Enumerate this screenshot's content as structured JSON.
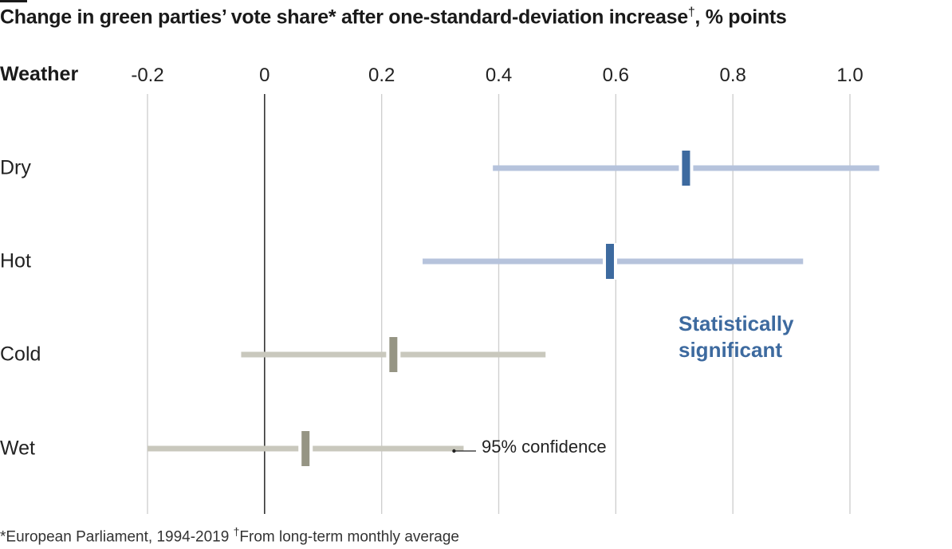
{
  "title": "Change in green parties’ vote share* after one-standard-deviation increase",
  "title_mark": "†",
  "title_suffix": ", % points",
  "chart_data": {
    "type": "interval",
    "ylabel": "Weather",
    "xlim": [
      -0.2,
      1.0
    ],
    "xticks": [
      -0.2,
      0,
      0.2,
      0.4,
      0.6,
      0.8,
      1.0
    ],
    "xtick_labels": [
      "-0.2",
      "0",
      "0.2",
      "0.4",
      "0.6",
      "0.8",
      "1.0"
    ],
    "grid": true,
    "categories": [
      "Dry",
      "Hot",
      "Cold",
      "Wet"
    ],
    "series": [
      {
        "category": "Dry",
        "estimate": 0.72,
        "ci_low": 0.39,
        "ci_high": 1.05,
        "significant": true
      },
      {
        "category": "Hot",
        "estimate": 0.59,
        "ci_low": 0.27,
        "ci_high": 0.92,
        "significant": true
      },
      {
        "category": "Cold",
        "estimate": 0.22,
        "ci_low": -0.04,
        "ci_high": 0.48,
        "significant": false
      },
      {
        "category": "Wet",
        "estimate": 0.07,
        "ci_low": -0.2,
        "ci_high": 0.34,
        "significant": false
      }
    ],
    "colors": {
      "significant_range": "#b6c3dc",
      "significant_marker": "#3d6a9f",
      "insignificant_range": "#c9c8bd",
      "insignificant_marker": "#969584",
      "gridline": "#cfcfcf",
      "zero_line": "#333333"
    },
    "annotations": {
      "significant": "Statistically significant",
      "confidence": "95% confidence"
    }
  },
  "footnote": {
    "part1": "*European Parliament, 1994-2019 ",
    "mark": "†",
    "part2": "From long-term monthly average"
  }
}
